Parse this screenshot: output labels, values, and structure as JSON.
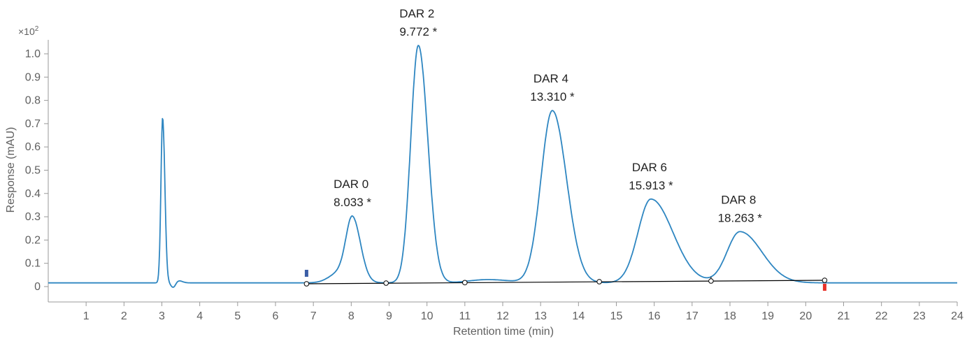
{
  "chart_data": {
    "type": "line",
    "xlabel": "Retention time (min)",
    "ylabel": "Response (mAU)",
    "y_multiplier": "×10",
    "y_multiplier_exp": "2",
    "xlim": [
      0,
      24
    ],
    "ylim": [
      -0.07,
      1.05
    ],
    "x_ticks": [
      "1",
      "2",
      "3",
      "4",
      "5",
      "6",
      "7",
      "8",
      "9",
      "10",
      "11",
      "12",
      "13",
      "14",
      "15",
      "16",
      "17",
      "18",
      "19",
      "20",
      "21",
      "22",
      "23",
      "24"
    ],
    "y_ticks": [
      "0",
      "0.1",
      "0.2",
      "0.3",
      "0.4",
      "0.5",
      "0.6",
      "0.7",
      "0.8",
      "0.9",
      "1.0"
    ],
    "baseline_level": 0.016,
    "series": [
      {
        "color": "#2e86c1",
        "peaks": [
          {
            "rt": 3.02,
            "height": 0.71
          },
          {
            "rt": 3.45,
            "height": 0.025
          },
          {
            "rt": 7.7,
            "height": 0.06
          },
          {
            "rt": 8.033,
            "height": 0.26
          },
          {
            "rt": 9.772,
            "height": 1.02
          },
          {
            "rt": 11.6,
            "height": 0.03
          },
          {
            "rt": 13.31,
            "height": 0.74
          },
          {
            "rt": 15.913,
            "height": 0.36
          },
          {
            "rt": 18.263,
            "height": 0.22
          }
        ]
      }
    ],
    "integration_baseline": {
      "color": "#000000",
      "points": [
        {
          "x": 6.82,
          "y": 0.012
        },
        {
          "x": 8.92,
          "y": 0.015
        },
        {
          "x": 11.0,
          "y": 0.017
        },
        {
          "x": 14.55,
          "y": 0.021
        },
        {
          "x": 17.5,
          "y": 0.024
        },
        {
          "x": 20.5,
          "y": 0.027
        }
      ]
    },
    "markers": {
      "start": {
        "x": 6.82,
        "color": "#3b5ea6"
      },
      "end": {
        "x": 20.5,
        "color": "#e8322a"
      }
    },
    "annotations": [
      {
        "name": "DAR 0",
        "rt_text": "8.033 *",
        "x": 8.033
      },
      {
        "name": "DAR 2",
        "rt_text": "9.772 *",
        "x": 9.772
      },
      {
        "name": "DAR 4",
        "rt_text": "13.310 *",
        "x": 13.31
      },
      {
        "name": "DAR 6",
        "rt_text": "15.913 *",
        "x": 15.913
      },
      {
        "name": "DAR 8",
        "rt_text": "18.263 *",
        "x": 18.263
      }
    ]
  }
}
